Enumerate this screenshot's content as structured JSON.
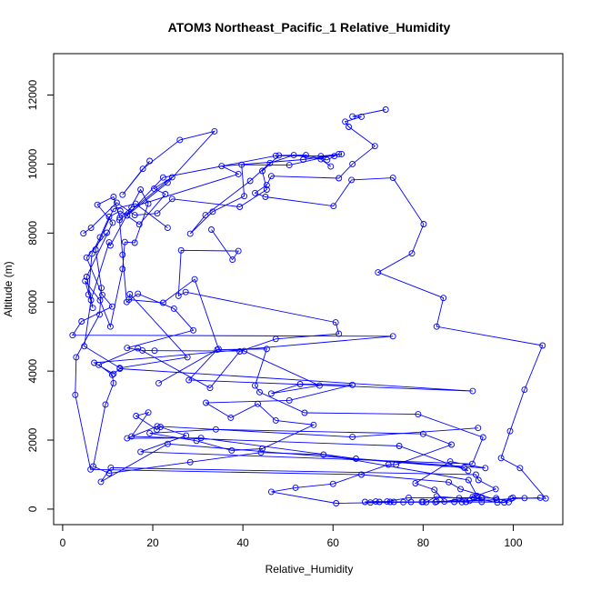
{
  "chart_data": {
    "type": "line",
    "title": "ATOM3 Northeast_Pacific_1 Relative_Humidity",
    "xlabel": "Relative_Humidity",
    "ylabel": "Altitude (m)",
    "xlim": [
      -2,
      111
    ],
    "ylim": [
      -450,
      13200
    ],
    "x_ticks": [
      0,
      20,
      40,
      60,
      80,
      100
    ],
    "y_ticks": [
      0,
      2000,
      4000,
      6000,
      8000,
      10000,
      12000
    ],
    "grid": false,
    "legend": "none",
    "color": "#0000ff",
    "series": [
      {
        "values": [
          [
            71.7,
            11580
          ],
          [
            64.3,
            11380
          ],
          [
            66.3,
            11370
          ],
          [
            62.7,
            11230
          ],
          [
            63.5,
            11080
          ],
          [
            69.3,
            10520
          ],
          [
            64.3,
            10000
          ],
          [
            61.3,
            9590
          ],
          [
            46.3,
            9650
          ],
          [
            45.3,
            9390
          ],
          [
            42.7,
            9160
          ],
          [
            45.0,
            9050
          ],
          [
            60.1,
            8780
          ],
          [
            64.1,
            9540
          ],
          [
            73.3,
            9600
          ],
          [
            80.1,
            8260
          ],
          [
            77.5,
            7410
          ],
          [
            70.0,
            6860
          ],
          [
            84.5,
            6120
          ],
          [
            83.0,
            5290
          ],
          [
            106.5,
            4740
          ],
          [
            102.5,
            3460
          ],
          [
            99.3,
            2260
          ],
          [
            97.3,
            1480
          ],
          [
            101.5,
            1190
          ],
          [
            107.2,
            310
          ],
          [
            102.5,
            320
          ],
          [
            99.9,
            330
          ],
          [
            98.0,
            190
          ],
          [
            96.5,
            190
          ],
          [
            91.3,
            320
          ],
          [
            88.0,
            320
          ],
          [
            83.0,
            370
          ],
          [
            80.7,
            200
          ],
          [
            75.6,
            200
          ],
          [
            72.7,
            210
          ],
          [
            69.5,
            220
          ],
          [
            67.1,
            210
          ],
          [
            73.5,
            210
          ],
          [
            77.3,
            210
          ],
          [
            79.7,
            210
          ],
          [
            82.7,
            200
          ],
          [
            86.9,
            210
          ],
          [
            89.5,
            210
          ],
          [
            92.9,
            320
          ],
          [
            96.2,
            320
          ],
          [
            99.0,
            200
          ],
          [
            93.0,
            210
          ],
          [
            88.6,
            200
          ]
        ]
      },
      {
        "values": [
          [
            9.8,
            8010
          ],
          [
            5.3,
            7290
          ],
          [
            8.8,
            6210
          ],
          [
            11.0,
            5870
          ],
          [
            4.2,
            5440
          ],
          [
            2.2,
            5040
          ],
          [
            73.3,
            5010
          ],
          [
            7.0,
            4240
          ],
          [
            11.3,
            3920
          ],
          [
            12.7,
            4070
          ],
          [
            91.0,
            3420
          ],
          [
            28.0,
            3740
          ],
          [
            34.3,
            4620
          ],
          [
            45.3,
            4640
          ],
          [
            42.7,
            3580
          ],
          [
            43.7,
            3390
          ],
          [
            53.7,
            2790
          ],
          [
            78.9,
            2750
          ],
          [
            93.3,
            2080
          ],
          [
            90.9,
            1310
          ],
          [
            17.3,
            1660
          ],
          [
            27.4,
            2130
          ],
          [
            21.7,
            2380
          ],
          [
            20.9,
            2300
          ],
          [
            16.3,
            2700
          ],
          [
            19.0,
            2800
          ],
          [
            15.3,
            2110
          ],
          [
            74.7,
            1830
          ],
          [
            90.0,
            1110
          ],
          [
            89.1,
            1200
          ],
          [
            23.3,
            1890
          ],
          [
            8.5,
            790
          ],
          [
            10.7,
            1200
          ],
          [
            91.7,
            1000
          ],
          [
            92.3,
            840
          ],
          [
            96.1,
            580
          ],
          [
            91.0,
            350
          ],
          [
            84.7,
            220
          ],
          [
            82.5,
            560
          ],
          [
            78.3,
            750
          ],
          [
            86.0,
            1380
          ],
          [
            93.8,
            1190
          ],
          [
            65.1,
            1460
          ],
          [
            30.7,
            2060
          ],
          [
            14.3,
            2050
          ],
          [
            21.0,
            2400
          ],
          [
            64.3,
            2090
          ],
          [
            92.2,
            2350
          ]
        ]
      },
      {
        "values": [
          [
            19.3,
            10090
          ],
          [
            13.3,
            9110
          ],
          [
            17.8,
            9860
          ],
          [
            26.0,
            10700
          ],
          [
            33.7,
            10950
          ],
          [
            23.3,
            9460
          ],
          [
            14.3,
            8510
          ],
          [
            22.3,
            9610
          ],
          [
            47.3,
            10240
          ],
          [
            60.3,
            10230
          ],
          [
            57.3,
            10230
          ],
          [
            61.9,
            10290
          ],
          [
            53.4,
            10130
          ],
          [
            35.3,
            9940
          ],
          [
            39.0,
            9710
          ],
          [
            15.3,
            8750
          ],
          [
            12.7,
            8450
          ],
          [
            11.3,
            9050
          ],
          [
            7.7,
            8820
          ],
          [
            11.1,
            8300
          ],
          [
            5.3,
            6730
          ],
          [
            6.7,
            5830
          ],
          [
            5.0,
            6610
          ],
          [
            8.3,
            6050
          ],
          [
            10.6,
            5290
          ],
          [
            13.3,
            6960
          ],
          [
            13.8,
            7740
          ],
          [
            16.0,
            7720
          ],
          [
            19.0,
            8850
          ],
          [
            17.3,
            9260
          ],
          [
            10.6,
            7640
          ],
          [
            10.3,
            7730
          ],
          [
            6.3,
            6060
          ],
          [
            4.8,
            4720
          ],
          [
            12.7,
            4090
          ],
          [
            27.7,
            4400
          ],
          [
            14.9,
            6230
          ],
          [
            14.7,
            6070
          ],
          [
            22.3,
            5980
          ],
          [
            29.3,
            6660
          ],
          [
            34.6,
            4640
          ],
          [
            21.3,
            3650
          ]
        ]
      },
      {
        "values": [
          [
            33.0,
            8100
          ],
          [
            37.7,
            7230
          ],
          [
            39.0,
            7480
          ],
          [
            26.3,
            7500
          ],
          [
            25.7,
            6180
          ],
          [
            27.3,
            6290
          ],
          [
            60.6,
            5410
          ],
          [
            61.3,
            5080
          ],
          [
            47.3,
            4930
          ],
          [
            39.3,
            4570
          ],
          [
            32.7,
            3510
          ],
          [
            16.7,
            4660
          ],
          [
            8.0,
            4180
          ],
          [
            11.0,
            3890
          ],
          [
            11.3,
            3650
          ],
          [
            9.5,
            3030
          ],
          [
            6.8,
            1240
          ],
          [
            10.3,
            1040
          ],
          [
            28.3,
            1360
          ],
          [
            44.0,
            1640
          ],
          [
            57.9,
            1580
          ],
          [
            90.1,
            840
          ],
          [
            92.0,
            380
          ],
          [
            93.1,
            330
          ],
          [
            76.8,
            330
          ],
          [
            72.0,
            220
          ],
          [
            70.3,
            210
          ],
          [
            68.3,
            190
          ]
        ]
      },
      {
        "values": [
          [
            23.3,
            8150
          ],
          [
            16.2,
            8850
          ],
          [
            11.3,
            8700
          ],
          [
            7.3,
            7520
          ],
          [
            8.6,
            6410
          ],
          [
            8.2,
            5640
          ],
          [
            3.0,
            4400
          ],
          [
            2.8,
            3310
          ],
          [
            6.2,
            1150
          ],
          [
            66.3,
            1000
          ],
          [
            85.7,
            780
          ],
          [
            88.3,
            580
          ],
          [
            96.3,
            270
          ],
          [
            83.0,
            220
          ]
        ]
      },
      {
        "values": [
          [
            5.7,
            6220
          ],
          [
            6.5,
            7400
          ],
          [
            8.3,
            7880
          ],
          [
            10.3,
            8470
          ],
          [
            12.8,
            8640
          ],
          [
            17.0,
            8250
          ],
          [
            22.8,
            9130
          ],
          [
            20.3,
            9290
          ],
          [
            24.3,
            9620
          ],
          [
            12.6,
            8380
          ],
          [
            13.3,
            7370
          ],
          [
            14.2,
            6000
          ],
          [
            16.7,
            6240
          ],
          [
            24.7,
            5810
          ],
          [
            29.0,
            5180
          ],
          [
            14.3,
            4670
          ],
          [
            17.7,
            4600
          ],
          [
            20.4,
            4590
          ],
          [
            40.3,
            4580
          ],
          [
            57.0,
            3580
          ],
          [
            46.3,
            3350
          ],
          [
            52.7,
            3620
          ],
          [
            64.3,
            3600
          ],
          [
            50.3,
            3150
          ],
          [
            31.8,
            3080
          ],
          [
            37.3,
            2650
          ],
          [
            43.3,
            3050
          ],
          [
            47.3,
            2570
          ],
          [
            55.7,
            2440
          ],
          [
            44.3,
            1750
          ],
          [
            37.5,
            1700
          ],
          [
            29.7,
            1980
          ],
          [
            19.3,
            2200
          ],
          [
            34.0,
            2310
          ],
          [
            80.0,
            2180
          ],
          [
            86.3,
            1870
          ],
          [
            74.0,
            1290
          ],
          [
            72.3,
            1290
          ],
          [
            60.0,
            730
          ],
          [
            51.7,
            620
          ],
          [
            46.3,
            500
          ],
          [
            60.7,
            170
          ],
          [
            80.0,
            210
          ],
          [
            90.3,
            240
          ],
          [
            96.3,
            270
          ],
          [
            99.5,
            300
          ],
          [
            106.0,
            330
          ]
        ]
      },
      {
        "values": [
          [
            4.6,
            7990
          ],
          [
            6.3,
            8150
          ],
          [
            12.0,
            8880
          ],
          [
            16.0,
            8520
          ],
          [
            21.0,
            8570
          ],
          [
            24.3,
            8990
          ],
          [
            39.3,
            8760
          ],
          [
            45.3,
            9260
          ],
          [
            44.3,
            9800
          ],
          [
            48.0,
            10250
          ],
          [
            54.0,
            10260
          ],
          [
            58.7,
            10120
          ],
          [
            61.3,
            10290
          ],
          [
            50.3,
            9970
          ],
          [
            39.7,
            9980
          ],
          [
            40.3,
            9070
          ],
          [
            33.3,
            8620
          ],
          [
            28.3,
            7980
          ],
          [
            31.7,
            8520
          ],
          [
            41.6,
            9510
          ],
          [
            46.0,
            10030
          ],
          [
            51.3,
            10260
          ],
          [
            57.3,
            10140
          ],
          [
            59.5,
            9930
          ]
        ]
      }
    ]
  }
}
